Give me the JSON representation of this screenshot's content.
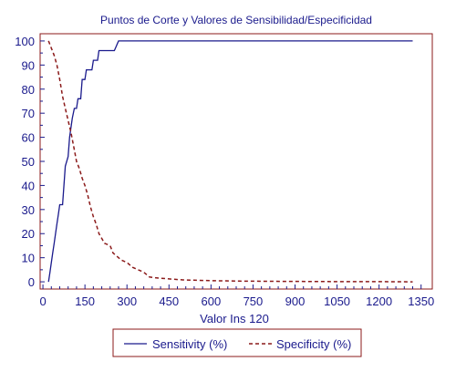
{
  "chart_data": {
    "type": "line",
    "title": "Puntos de Corte y Valores de Sensibilidad/Especificidad",
    "xlabel": "Valor Ins 120",
    "ylabel": "",
    "xlim": [
      -10,
      1390
    ],
    "ylim": [
      -3,
      103
    ],
    "x_ticks": [
      0,
      150,
      300,
      450,
      600,
      750,
      900,
      1050,
      1200,
      1350
    ],
    "y_ticks": [
      0,
      10,
      20,
      30,
      40,
      50,
      60,
      70,
      80,
      90,
      100
    ],
    "grid": false,
    "legend_position": "bottom",
    "series": [
      {
        "name": "Sensitivity (%)",
        "color": "#1a1a8c",
        "style": "solid",
        "points": [
          [
            20,
            0
          ],
          [
            25,
            4
          ],
          [
            30,
            8
          ],
          [
            35,
            12
          ],
          [
            40,
            16
          ],
          [
            45,
            20
          ],
          [
            50,
            24
          ],
          [
            55,
            28
          ],
          [
            60,
            32
          ],
          [
            70,
            32
          ],
          [
            75,
            40
          ],
          [
            80,
            48
          ],
          [
            90,
            52
          ],
          [
            95,
            60
          ],
          [
            100,
            64
          ],
          [
            105,
            68
          ],
          [
            112,
            72
          ],
          [
            120,
            72
          ],
          [
            125,
            76
          ],
          [
            135,
            76
          ],
          [
            140,
            84
          ],
          [
            150,
            84
          ],
          [
            155,
            88
          ],
          [
            175,
            88
          ],
          [
            180,
            92
          ],
          [
            195,
            92
          ],
          [
            200,
            96
          ],
          [
            255,
            96
          ],
          [
            270,
            100
          ],
          [
            1320,
            100
          ]
        ]
      },
      {
        "name": "Specificity (%)",
        "color": "#8b1a1a",
        "style": "dashed",
        "points": [
          [
            20,
            100
          ],
          [
            30,
            97
          ],
          [
            40,
            94
          ],
          [
            50,
            90
          ],
          [
            60,
            84
          ],
          [
            70,
            77
          ],
          [
            80,
            72
          ],
          [
            90,
            67
          ],
          [
            100,
            62
          ],
          [
            110,
            56
          ],
          [
            120,
            50
          ],
          [
            130,
            47
          ],
          [
            140,
            43
          ],
          [
            150,
            40
          ],
          [
            160,
            36
          ],
          [
            170,
            31
          ],
          [
            180,
            27
          ],
          [
            190,
            24
          ],
          [
            200,
            20
          ],
          [
            210,
            18
          ],
          [
            220,
            16
          ],
          [
            240,
            15
          ],
          [
            250,
            12
          ],
          [
            260,
            11
          ],
          [
            280,
            9
          ],
          [
            300,
            8
          ],
          [
            320,
            6
          ],
          [
            340,
            5
          ],
          [
            360,
            4
          ],
          [
            380,
            2
          ],
          [
            400,
            1.7
          ],
          [
            450,
            1.2
          ],
          [
            500,
            0.8
          ],
          [
            600,
            0.5
          ],
          [
            700,
            0.3
          ],
          [
            800,
            0.2
          ],
          [
            1000,
            0.1
          ],
          [
            1200,
            0.05
          ],
          [
            1320,
            0
          ]
        ]
      }
    ]
  }
}
